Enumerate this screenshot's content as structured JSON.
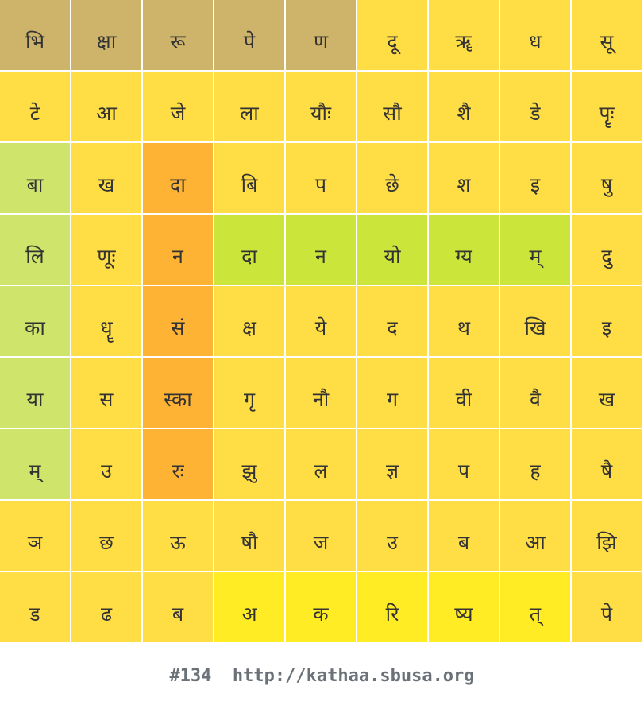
{
  "puzzle": {
    "rows": [
      [
        "भि",
        "क्षा",
        "रू",
        "पे",
        "ण",
        "दू",
        "ॠ",
        "ध",
        "सू"
      ],
      [
        "टे",
        "आ",
        "जे",
        "ला",
        "यौः",
        "सौ",
        "शै",
        "डे",
        "पॄः"
      ],
      [
        "बा",
        "ख",
        "दा",
        "बि",
        "प",
        "छे",
        "श",
        "इ",
        "षु"
      ],
      [
        "लि",
        "णूः",
        "न",
        "दा",
        "न",
        "यो",
        "ग्य",
        "म्",
        "दु"
      ],
      [
        "का",
        "धॄ",
        "सं",
        "क्ष",
        "ये",
        "द",
        "थ",
        "खि",
        "इ"
      ],
      [
        "या",
        "स",
        "स्का",
        "गृ",
        "नौ",
        "ग",
        "वी",
        "वै",
        "ख"
      ],
      [
        "म्",
        "उ",
        "रः",
        "झु",
        "ल",
        "ज्ञ",
        "प",
        "ह",
        "षै"
      ],
      [
        "ञ",
        "छ",
        "ऊ",
        "षौ",
        "ज",
        "उ",
        "ब",
        "आ",
        "झि"
      ],
      [
        "ड",
        "ढ",
        "ब",
        "अ",
        "क",
        "रि",
        "ष्य",
        "त्",
        "पे"
      ]
    ],
    "colors": [
      [
        "tan",
        "tan",
        "tan",
        "tan",
        "tan",
        "base",
        "base",
        "base",
        "base"
      ],
      [
        "base",
        "base",
        "base",
        "base",
        "base",
        "base",
        "base",
        "base",
        "base"
      ],
      [
        "lightgreen",
        "base",
        "orange",
        "base",
        "base",
        "base",
        "base",
        "base",
        "base"
      ],
      [
        "lightgreen",
        "base",
        "orange",
        "green",
        "green",
        "green",
        "green",
        "green",
        "base"
      ],
      [
        "lightgreen",
        "base",
        "orange",
        "base",
        "base",
        "base",
        "base",
        "base",
        "base"
      ],
      [
        "lightgreen",
        "base",
        "orange",
        "base",
        "base",
        "base",
        "base",
        "base",
        "base"
      ],
      [
        "lightgreen",
        "base",
        "orange",
        "base",
        "base",
        "base",
        "base",
        "base",
        "base"
      ],
      [
        "base",
        "base",
        "base",
        "base",
        "base",
        "base",
        "base",
        "base",
        "base"
      ],
      [
        "base",
        "base",
        "base",
        "bright",
        "bright",
        "bright",
        "bright",
        "bright",
        "base"
      ]
    ]
  },
  "palette": {
    "base": "#FFDE45",
    "tan": "#CDB46A",
    "orange": "#FFB335",
    "lightgreen": "#CFE46A",
    "green": "#CCE53A",
    "bright": "#FFEC25"
  },
  "footer": {
    "text": "#134  http://kathaa.sbusa.org"
  }
}
